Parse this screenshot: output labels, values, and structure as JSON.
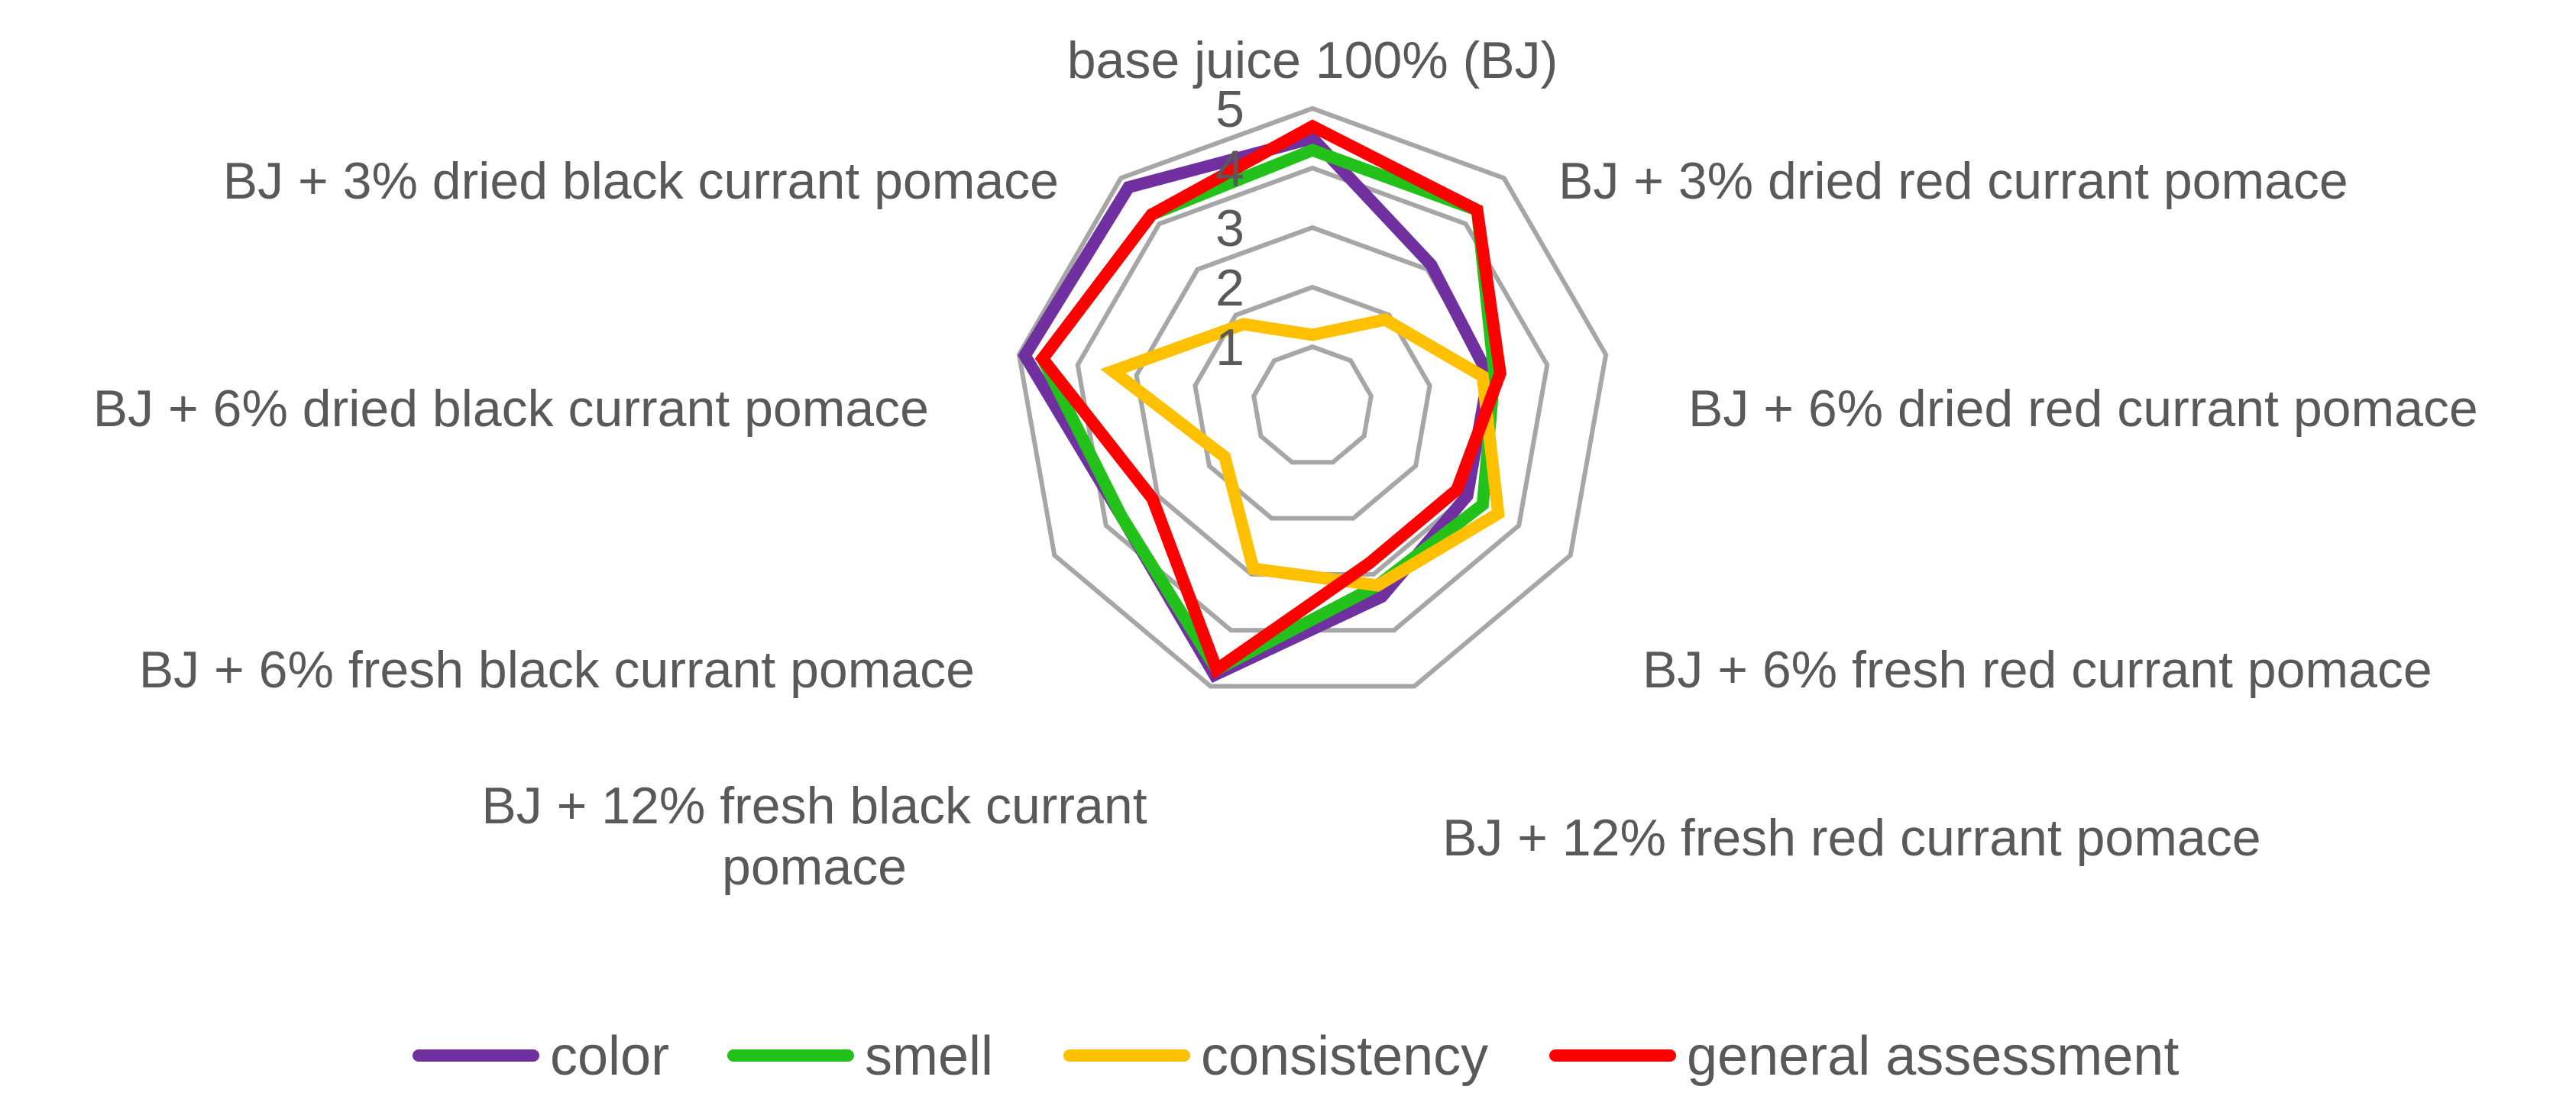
{
  "chart_data": {
    "type": "radar",
    "title": "",
    "categories": [
      "base juice 100% (BJ)",
      "BJ + 3% dried red currant pomace",
      "BJ + 6% dried red currant pomace",
      "BJ + 6% fresh red currant pomace",
      "BJ + 12% fresh red currant pomace",
      [
        "BJ + 12% fresh black currant",
        "pomace"
      ],
      "BJ + 6% fresh black currant pomace",
      "BJ + 6% dried black currant pomace",
      "BJ + 3% dried black currant pomace"
    ],
    "rlim": [
      0,
      5
    ],
    "ticks": [
      1,
      2,
      3,
      4,
      5
    ],
    "grid": true,
    "legend_position": "bottom",
    "series": [
      {
        "name": "color",
        "color": "#7030A0",
        "values": [
          4.5,
          3.1,
          3.0,
          3.0,
          3.4,
          4.8,
          3.7,
          4.9,
          4.8
        ]
      },
      {
        "name": "smell",
        "color": "#22C21A",
        "values": [
          4.3,
          4.3,
          3.1,
          3.3,
          3.2,
          4.7,
          3.7,
          4.6,
          4.2
        ]
      },
      {
        "name": "consistency",
        "color": "#FFC000",
        "values": [
          1.2,
          1.9,
          2.9,
          3.6,
          3.2,
          2.9,
          1.7,
          3.4,
          1.8
        ]
      },
      {
        "name": "general assessment",
        "color": "#FF0000",
        "values": [
          4.7,
          4.3,
          3.2,
          2.8,
          2.8,
          4.7,
          3.1,
          4.6,
          4.2
        ]
      }
    ]
  }
}
